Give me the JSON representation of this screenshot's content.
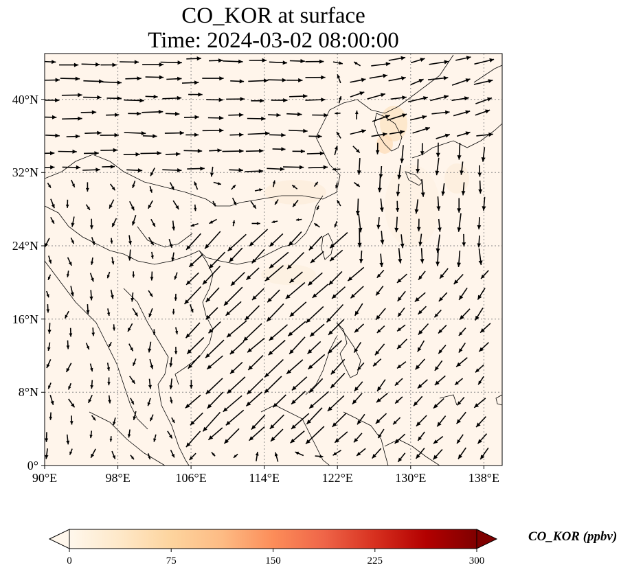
{
  "title": {
    "line1": "CO_KOR at surface",
    "line2": "Time: 2024-03-02 08:00:00"
  },
  "map": {
    "extent": {
      "lon_min": 90,
      "lon_max": 140,
      "lat_min": 0,
      "lat_max": 45
    },
    "x_ticks": [
      "90°E",
      "98°E",
      "106°E",
      "114°E",
      "122°E",
      "130°E",
      "138°E"
    ],
    "y_ticks": [
      "40°N",
      "32°N",
      "24°N",
      "16°N",
      "8°N",
      "0°"
    ],
    "grid": "dotted gray gridlines",
    "background_color": "#fff5eb",
    "overlay": "wind vectors (black arrows)",
    "coastlines": true
  },
  "colorbar": {
    "label": "CO_KOR (ppbv)",
    "ticks": [
      "0",
      "75",
      "150",
      "225",
      "300"
    ],
    "min": 0,
    "max": 300,
    "colormap": "OrRd",
    "colors": [
      "#fff7ec",
      "#fee8c8",
      "#fdd49e",
      "#fdbb84",
      "#fc8d59",
      "#ef6548",
      "#d7301f",
      "#b30000",
      "#7f0000"
    ],
    "extend": "both"
  }
}
